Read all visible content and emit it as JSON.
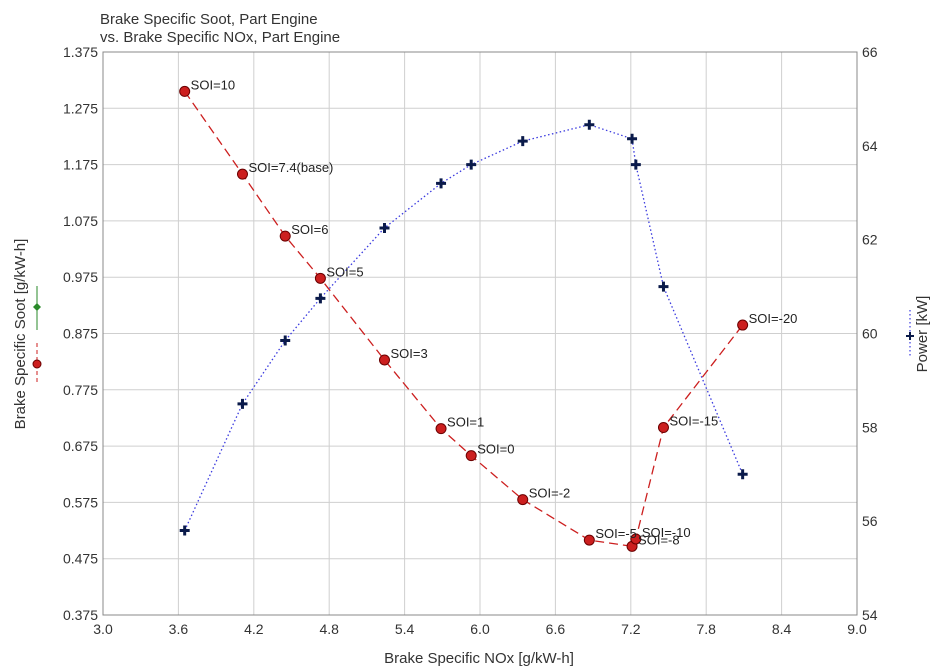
{
  "chart_data": {
    "type": "line",
    "title_line1": "Brake Specific Soot, Part Engine",
    "title_line2": "vs. Brake Specific NOx, Part Engine",
    "xlabel": "Brake Specific NOx [g/kW-h]",
    "ylabel_left": "Brake Specific Soot [g/kW-h]",
    "ylabel_right": "Power [kW]",
    "xlim": [
      3.0,
      9.0
    ],
    "ylim_left": [
      0.375,
      1.375
    ],
    "ylim_right": [
      54,
      66
    ],
    "x_ticks": [
      "3.0",
      "3.6",
      "4.2",
      "4.8",
      "5.4",
      "6.0",
      "6.6",
      "7.2",
      "7.8",
      "8.4",
      "9.0"
    ],
    "y_ticks_left": [
      "0.375",
      "0.475",
      "0.575",
      "0.675",
      "0.775",
      "0.875",
      "0.975",
      "1.075",
      "1.175",
      "1.275",
      "1.375"
    ],
    "y_ticks_right": [
      "54",
      "56",
      "58",
      "60",
      "62",
      "64",
      "66"
    ],
    "grid": true,
    "series": [
      {
        "name": "Brake Specific Soot",
        "axis": "left",
        "color": "#cc1f1f",
        "line_style": "dashed",
        "marker": "circle",
        "points": [
          {
            "x": 3.65,
            "y": 1.305,
            "label": "SOI=10"
          },
          {
            "x": 4.11,
            "y": 1.158,
            "label": "SOI=7.4(base)"
          },
          {
            "x": 4.45,
            "y": 1.048,
            "label": "SOI=6"
          },
          {
            "x": 4.73,
            "y": 0.973,
            "label": "SOI=5"
          },
          {
            "x": 5.24,
            "y": 0.828,
            "label": "SOI=3"
          },
          {
            "x": 5.69,
            "y": 0.706,
            "label": "SOI=1"
          },
          {
            "x": 5.93,
            "y": 0.658,
            "label": "SOI=0"
          },
          {
            "x": 6.34,
            "y": 0.58,
            "label": "SOI=-2"
          },
          {
            "x": 6.87,
            "y": 0.508,
            "label": "SOI=-5"
          },
          {
            "x": 7.21,
            "y": 0.497,
            "label": "SOI=-8"
          },
          {
            "x": 7.24,
            "y": 0.51,
            "label": "SOI=-10"
          },
          {
            "x": 7.46,
            "y": 0.708,
            "label": "SOI=-15"
          },
          {
            "x": 8.09,
            "y": 0.89,
            "label": "SOI=-20"
          }
        ]
      },
      {
        "name": "Power",
        "axis": "right",
        "color": "#3a3adf",
        "marker_color": "#0a1a4a",
        "line_style": "dotted",
        "marker": "plus",
        "points": [
          {
            "x": 3.65,
            "y": 55.8
          },
          {
            "x": 4.11,
            "y": 58.5
          },
          {
            "x": 4.45,
            "y": 59.85
          },
          {
            "x": 4.73,
            "y": 60.75
          },
          {
            "x": 5.24,
            "y": 62.25
          },
          {
            "x": 5.69,
            "y": 63.2
          },
          {
            "x": 5.93,
            "y": 63.6
          },
          {
            "x": 6.34,
            "y": 64.1
          },
          {
            "x": 6.87,
            "y": 64.45
          },
          {
            "x": 7.21,
            "y": 64.15
          },
          {
            "x": 7.24,
            "y": 63.6
          },
          {
            "x": 7.46,
            "y": 61.0
          },
          {
            "x": 8.09,
            "y": 57.0
          }
        ]
      }
    ]
  }
}
